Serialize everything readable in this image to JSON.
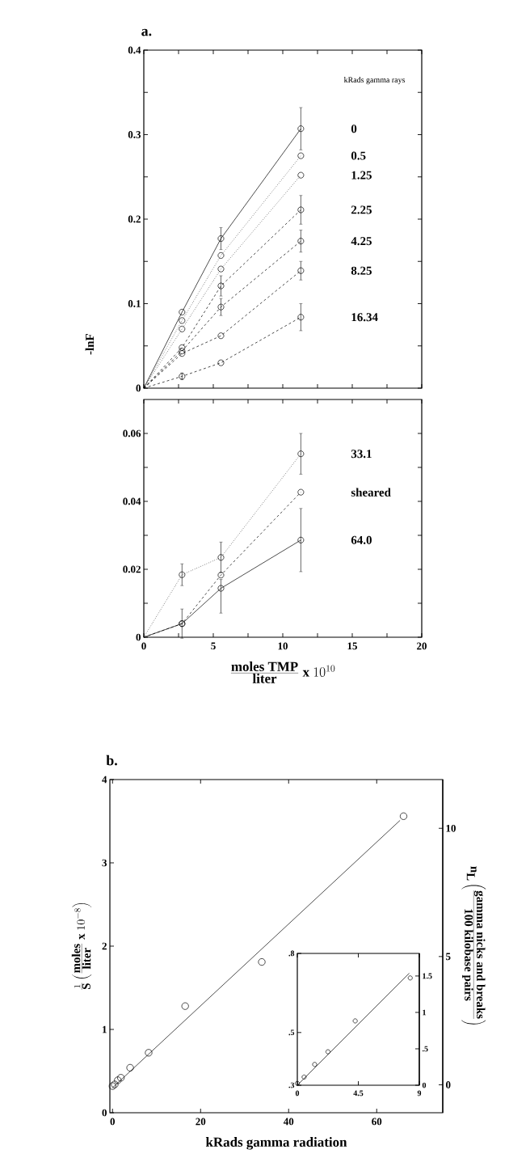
{
  "chart_data": [
    {
      "type": "line",
      "title": "a.",
      "ylabel": "-lnF",
      "legend_title": "kRads gamma rays",
      "x": [
        0,
        2.75,
        5.55,
        11.3
      ],
      "xlim": [
        0,
        20
      ],
      "ylim": [
        0,
        0.4
      ],
      "xticks": [
        0,
        2.5,
        5,
        7.5,
        10,
        12.5,
        15,
        17.5,
        20
      ],
      "yticks": [
        0,
        {
          "value": 0.05,
          "label": null
        },
        0.1,
        {
          "value": 0.15,
          "label": null
        },
        0.2,
        {
          "value": 0.25,
          "label": null
        },
        0.3,
        {
          "value": 0.35,
          "label": null
        },
        0.4
      ],
      "tick_labels": "y",
      "marker": "circle",
      "series": [
        {
          "name": "0",
          "color": "#000000",
          "line_style": "solid",
          "values": [
            0,
            0.09,
            0.177,
            0.307
          ],
          "errors": [
            null,
            null,
            0.013,
            0.025
          ]
        },
        {
          "name": "0.5",
          "color": "#000000",
          "line_style": "dotted",
          "values": [
            0,
            0.08,
            0.157,
            0.275
          ]
        },
        {
          "name": "1.25",
          "color": "#000000",
          "line_style": "dotted",
          "values": [
            0,
            0.07,
            0.141,
            0.252
          ]
        },
        {
          "name": "2.25",
          "color": "#000000",
          "line_style": "dashed",
          "values": [
            0,
            0.048,
            0.121,
            0.211
          ],
          "errors": [
            null,
            null,
            0.012,
            0.017
          ]
        },
        {
          "name": "4.25",
          "color": "#000000",
          "line_style": "dashed",
          "values": [
            0,
            0.044,
            0.096,
            0.174
          ],
          "errors": [
            null,
            null,
            0.01,
            0.013
          ]
        },
        {
          "name": "8.25",
          "color": "#000000",
          "line_style": "dashed",
          "values": [
            0,
            0.041,
            0.062,
            0.139
          ],
          "errors": [
            null,
            null,
            null,
            0.011
          ]
        },
        {
          "name": "16.34",
          "color": "#000000",
          "line_style": "dashed",
          "values": [
            0,
            0.014,
            0.03,
            0.084
          ],
          "errors": [
            null,
            0.004,
            null,
            0.016
          ]
        }
      ]
    },
    {
      "type": "line",
      "xlabel": "\\frac{\\mbox{moles TMP}}{\\mbox{liter}}\\ \\mbox{x}\\ 10^{10}",
      "x": [
        0,
        2.75,
        5.55,
        11.3
      ],
      "xlim": [
        0,
        20
      ],
      "ylim": [
        0,
        0.07
      ],
      "xticks": [
        0,
        {
          "value": 2.5,
          "label": null
        },
        5,
        {
          "value": 7.5,
          "label": null
        },
        10,
        {
          "value": 12.5,
          "label": null
        },
        15,
        {
          "value": 17.5,
          "label": null
        },
        20
      ],
      "yticks": [
        0,
        {
          "value": 0.01,
          "label": null
        },
        0.02,
        {
          "value": 0.03,
          "label": null
        },
        0.04,
        {
          "value": 0.05,
          "label": null
        },
        0.06
      ],
      "marker": "circle",
      "series": [
        {
          "name": "33.1",
          "color": "#000000",
          "line_style": "dotted",
          "values": [
            0,
            0.0184,
            0.0235,
            0.054
          ],
          "errors": [
            null,
            0.0032,
            0.0045,
            0.006
          ]
        },
        {
          "name": "sheared",
          "color": "#000000",
          "line_style": "dashed",
          "values": [
            0,
            0.004,
            0.0183,
            0.0427
          ]
        },
        {
          "name": "64.0",
          "color": "#000000",
          "line_style": "solid",
          "values": [
            0,
            0.004,
            0.0144,
            0.0286
          ],
          "errors": [
            null,
            0.0043,
            [
              0.0071,
              0.017
            ],
            0.0093
          ]
        }
      ]
    },
    {
      "type": "scatter",
      "title": "b.",
      "xlabel": "kRads gamma radiation",
      "ylabel": "\\frac{1}{\\mbox{S}}\\left(\\frac{\\mbox{moles}}{\\mbox{liter}}\\ \\mbox{x}\\ 10^{-8}\\right)",
      "y2label": "\\mbox{n}_{\\mbox{L}}\\left(\\frac{\\mbox{gamma nicks and breaks}}{\\mbox{100 kilobase pairs}}\\right)",
      "xlim": [
        -0.6,
        75
      ],
      "ylim": [
        0,
        4
      ],
      "xticks": [
        0,
        20,
        40,
        60
      ],
      "yticks": [
        0,
        1,
        2,
        3,
        4
      ],
      "y2lim": [
        -1.09,
        11.9
      ],
      "y2ticks": [
        0,
        5,
        10
      ],
      "marker": "circle",
      "series": [
        {
          "type": "scatter",
          "color": "#000000",
          "x": [
            0,
            0.5,
            1.2,
            1.9,
            4.0,
            8.2,
            16.5,
            33.9,
            66.1
          ],
          "values": [
            0.32,
            0.34,
            0.39,
            0.42,
            0.54,
            0.72,
            1.28,
            1.81,
            3.56
          ]
        },
        {
          "type": "line",
          "color": "#000000",
          "marker": "none",
          "x": [
            0,
            65.3
          ],
          "values": [
            0.3,
            3.51
          ]
        }
      ]
    },
    {
      "type": "scatter",
      "xlim": [
        0,
        9
      ],
      "ylim": [
        0.3,
        0.8
      ],
      "xticks": [
        0,
        4.5,
        9
      ],
      "yticks": [
        {
          "value": 0.3,
          "label": ".3"
        },
        {
          "value": 0.5,
          "label": ".5"
        },
        {
          "value": 0.8,
          "label": ".8"
        }
      ],
      "y2lim": [
        0,
        1.81
      ],
      "y2ticks": [
        0,
        {
          "value": 0.5,
          "label": ".5"
        },
        1,
        1.5
      ],
      "marker": "circle",
      "series": [
        {
          "type": "scatter",
          "color": "#000000",
          "x": [
            0,
            0.5,
            1.28,
            2.26,
            4.27,
            8.33
          ],
          "values": [
            0.307,
            0.331,
            0.379,
            0.427,
            0.544,
            0.707
          ]
        },
        {
          "type": "line",
          "color": "#000000",
          "marker": "none",
          "x": [
            0,
            8.26
          ],
          "values": [
            0.3,
            0.725
          ]
        }
      ]
    }
  ]
}
